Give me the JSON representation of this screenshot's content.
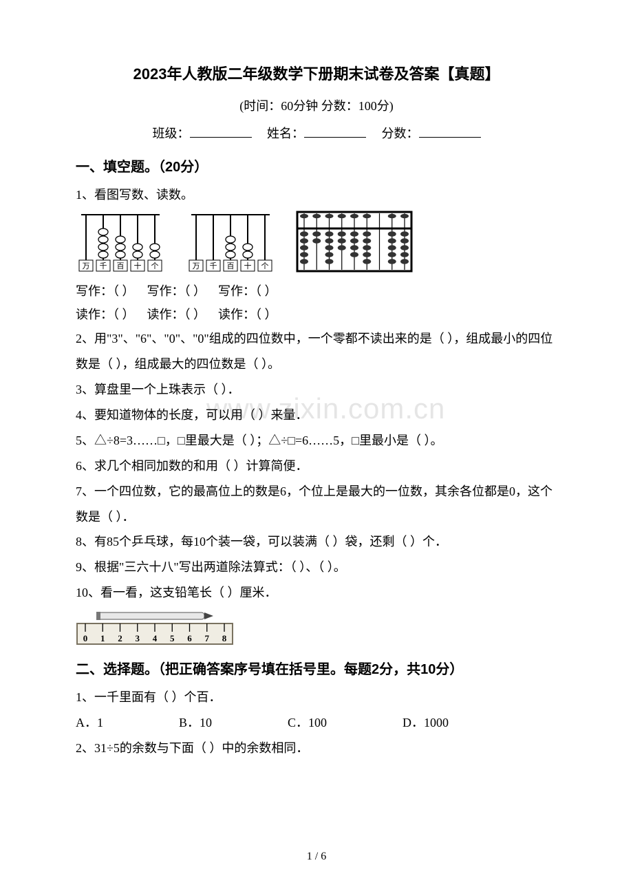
{
  "title": "2023年人教版二年级数学下册期末试卷及答案【真题】",
  "subtitle": "(时间：60分钟    分数：100分)",
  "info": {
    "class": "班级：",
    "name": "姓名：",
    "score": "分数："
  },
  "section1": {
    "header": "一、填空题。（20分）",
    "q1": "1、看图写数、读数。",
    "write": "写作：（      ）",
    "read": "读作：（      ）",
    "abacus_labels": [
      "万",
      "千",
      "百",
      "十",
      "个"
    ],
    "abacus1_beads": [
      0,
      4,
      3,
      2,
      2
    ],
    "abacus2_beads": [
      0,
      0,
      3,
      2,
      0
    ],
    "abacus3_top": [
      1,
      1,
      1,
      1,
      1,
      1,
      0,
      1,
      1
    ],
    "abacus3_bottom": [
      5,
      2,
      5,
      3,
      4,
      5,
      0,
      5,
      5
    ],
    "q2": "2、用\"3\"、\"6\"、\"0\"、\"0\"组成的四位数中，一个零都不读出来的是（      ），组成最小的四位数是（      ），组成最大的四位数是（      ）。",
    "q3": "3、算盘里一个上珠表示（      ）．",
    "q4": "4、要知道物体的长度，可以用（      ）来量．",
    "q5": "5、△÷8=3……□，□里最大是（      ）；△÷□=6……5，□里最小是（      ）。",
    "q6": "6、求几个相同加数的和用（      ）计算简便．",
    "q7": "7、一个四位数，它的最高位上的数是6，个位上是最大的一位数，其余各位都是0，这个数是（      ）．",
    "q8": "8、有85个乒乓球，每10个装一袋，可以装满（      ）袋，还剩（      ）个．",
    "q9": "9、根据\"三六十八\"写出两道除法算式：（      ）、（      ）。",
    "q10": "10、看一看，这支铅笔长（      ）厘米．",
    "ruler_ticks": [
      "0",
      "1",
      "2",
      "3",
      "4",
      "5",
      "6",
      "7",
      "8"
    ]
  },
  "section2": {
    "header": "二、选择题。（把正确答案序号填在括号里。每题2分，共10分）",
    "q1": "1、一千里面有（      ）个百．",
    "q1_choices": [
      "A．1",
      "B．10",
      "C．100",
      "D．1000"
    ],
    "q2": "2、31÷5的余数与下面（      ）中的余数相同．"
  },
  "footer": "1 / 6",
  "watermark": "www.zixin.com.cn",
  "colors": {
    "text": "#000000",
    "bg": "#ffffff",
    "wm": "rgba(0,0,0,0.10)",
    "ruler_bg": "#f0ede3",
    "ruler_border": "#7a7260",
    "pencil_body": "#e8e8e8",
    "pencil_dark": "#444444"
  }
}
